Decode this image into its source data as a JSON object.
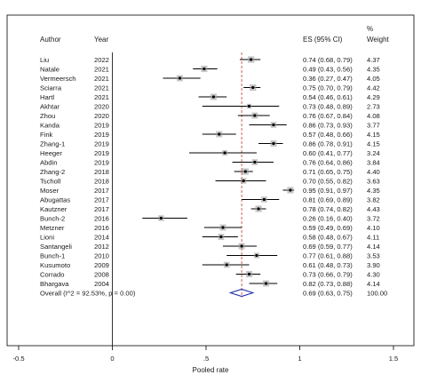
{
  "header": {
    "author": "Author",
    "year": "Year",
    "es_ci": "ES (95% CI)",
    "weight_pct": "%",
    "weight": "Weight"
  },
  "chart_data": {
    "type": "forest",
    "xlabel": "Pooled rate",
    "xlim": [
      -0.5,
      1.5
    ],
    "xticks": [
      "-0.5",
      "0",
      ".5",
      "1",
      "1.5"
    ],
    "xtick_values": [
      -0.5,
      0,
      0.5,
      1,
      1.5
    ],
    "null_line": 0,
    "pooled_line": 0.69,
    "studies": [
      {
        "author": "Liu",
        "year": "2022",
        "es": 0.74,
        "lo": 0.68,
        "hi": 0.79,
        "es_text": "0.74 (0.68, 0.79)",
        "weight": "4.37"
      },
      {
        "author": "Natale",
        "year": "2021",
        "es": 0.49,
        "lo": 0.43,
        "hi": 0.56,
        "es_text": "0.49 (0.43, 0.56)",
        "weight": "4.35"
      },
      {
        "author": "Vermeersch",
        "year": "2021",
        "es": 0.36,
        "lo": 0.27,
        "hi": 0.47,
        "es_text": "0.36 (0.27, 0.47)",
        "weight": "4.05"
      },
      {
        "author": "Sciarra",
        "year": "2021",
        "es": 0.75,
        "lo": 0.7,
        "hi": 0.79,
        "es_text": "0.75 (0.70, 0.79)",
        "weight": "4.42"
      },
      {
        "author": "Hartl",
        "year": "2021",
        "es": 0.54,
        "lo": 0.46,
        "hi": 0.61,
        "es_text": "0.54 (0.46, 0.61)",
        "weight": "4.29"
      },
      {
        "author": "Akhtar",
        "year": "2020",
        "es": 0.73,
        "lo": 0.48,
        "hi": 0.89,
        "es_text": "0.73 (0.48, 0.89)",
        "weight": "2.73"
      },
      {
        "author": "Zhou",
        "year": "2020",
        "es": 0.76,
        "lo": 0.67,
        "hi": 0.84,
        "es_text": "0.76 (0.67, 0.84)",
        "weight": "4.08"
      },
      {
        "author": "Kanda",
        "year": "2019",
        "es": 0.86,
        "lo": 0.73,
        "hi": 0.93,
        "es_text": "0.86 (0.73, 0.93)",
        "weight": "3.77"
      },
      {
        "author": "Fink",
        "year": "2019",
        "es": 0.57,
        "lo": 0.48,
        "hi": 0.66,
        "es_text": "0.57 (0.48, 0.66)",
        "weight": "4.15"
      },
      {
        "author": "Zhang-1",
        "year": "2019",
        "es": 0.86,
        "lo": 0.78,
        "hi": 0.91,
        "es_text": "0.86 (0.78, 0.91)",
        "weight": "4.15"
      },
      {
        "author": "Heeger",
        "year": "2019",
        "es": 0.6,
        "lo": 0.41,
        "hi": 0.77,
        "es_text": "0.60 (0.41, 0.77)",
        "weight": "3.24"
      },
      {
        "author": "Abdin",
        "year": "2019",
        "es": 0.76,
        "lo": 0.64,
        "hi": 0.86,
        "es_text": "0.76 (0.64, 0.86)",
        "weight": "3.84"
      },
      {
        "author": "Zhang-2",
        "year": "2018",
        "es": 0.71,
        "lo": 0.65,
        "hi": 0.75,
        "es_text": "0.71 (0.65, 0.75)",
        "weight": "4.40"
      },
      {
        "author": "Tscholl",
        "year": "2018",
        "es": 0.7,
        "lo": 0.55,
        "hi": 0.82,
        "es_text": "0.70 (0.55, 0.82)",
        "weight": "3.63"
      },
      {
        "author": "Moser",
        "year": "2017",
        "es": 0.95,
        "lo": 0.91,
        "hi": 0.97,
        "es_text": "0.95 (0.91, 0.97)",
        "weight": "4.35"
      },
      {
        "author": "Abugattas",
        "year": "2017",
        "es": 0.81,
        "lo": 0.69,
        "hi": 0.89,
        "es_text": "0.81 (0.69, 0.89)",
        "weight": "3.82"
      },
      {
        "author": "Kautzner",
        "year": "2017",
        "es": 0.78,
        "lo": 0.74,
        "hi": 0.82,
        "es_text": "0.78 (0.74, 0.82)",
        "weight": "4.43"
      },
      {
        "author": "Bunch-2",
        "year": "2016",
        "es": 0.26,
        "lo": 0.16,
        "hi": 0.4,
        "es_text": "0.26 (0.16, 0.40)",
        "weight": "3.72"
      },
      {
        "author": "Metzner",
        "year": "2016",
        "es": 0.59,
        "lo": 0.49,
        "hi": 0.69,
        "es_text": "0.59 (0.49, 0.69)",
        "weight": "4.10"
      },
      {
        "author": "Lioni",
        "year": "2014",
        "es": 0.58,
        "lo": 0.48,
        "hi": 0.67,
        "es_text": "0.58 (0.48, 0.67)",
        "weight": "4.11"
      },
      {
        "author": "Santangeli",
        "year": "2012",
        "es": 0.69,
        "lo": 0.59,
        "hi": 0.77,
        "es_text": "0.69 (0.59, 0.77)",
        "weight": "4.14"
      },
      {
        "author": "Bunch-1",
        "year": "2010",
        "es": 0.77,
        "lo": 0.61,
        "hi": 0.88,
        "es_text": "0.77 (0.61, 0.88)",
        "weight": "3.53"
      },
      {
        "author": "Kusumoto",
        "year": "2009",
        "es": 0.61,
        "lo": 0.48,
        "hi": 0.73,
        "es_text": "0.61 (0.48, 0.73)",
        "weight": "3.90"
      },
      {
        "author": "Corrado",
        "year": "2008",
        "es": 0.73,
        "lo": 0.66,
        "hi": 0.79,
        "es_text": "0.73 (0.66, 0.79)",
        "weight": "4.30"
      },
      {
        "author": "Bhargava",
        "year": "2004",
        "es": 0.82,
        "lo": 0.73,
        "hi": 0.88,
        "es_text": "0.82 (0.73, 0.88)",
        "weight": "4.14"
      }
    ],
    "overall": {
      "label": "Overall  (I^2 = 92.53%, p = 0.00)",
      "es": 0.69,
      "lo": 0.63,
      "hi": 0.75,
      "es_text": "0.69 (0.63, 0.75)",
      "weight": "100.00"
    },
    "colors": {
      "frame": "#000000",
      "pooled_line": "#c0392b",
      "diamond": "#1f2fa8",
      "square": "#a0a0a0",
      "text": "#1a1a1a"
    }
  }
}
